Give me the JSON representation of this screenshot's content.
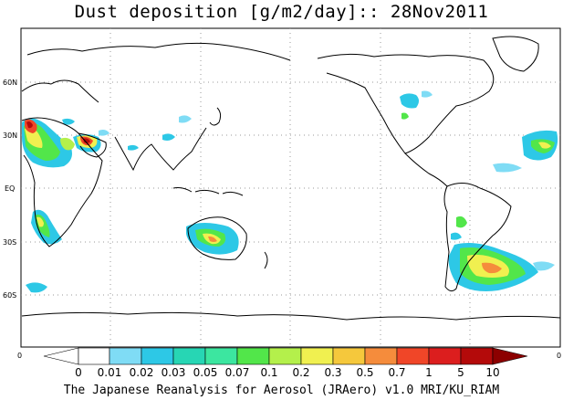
{
  "title": "Dust deposition [g/m2/day]:: 28Nov2011",
  "caption": "The Japanese Reanalysis for Aerosol (JRAero) v1.0 MRI/KU_RIAM",
  "map": {
    "lat_labels": [
      "60N",
      "30N",
      "EQ",
      "30S",
      "60S"
    ],
    "corner_labels": [
      "0",
      "0"
    ],
    "grid": true
  },
  "colorbar": {
    "levels": [
      "0",
      "0.01",
      "0.02",
      "0.03",
      "0.05",
      "0.07",
      "0.1",
      "0.2",
      "0.3",
      "0.5",
      "0.7",
      "1",
      "5",
      "10"
    ],
    "colors": [
      "#ffffff",
      "#ffffff",
      "#7fdcf5",
      "#2dc8e6",
      "#27d6b4",
      "#3ce6a0",
      "#52e64a",
      "#b4f04b",
      "#f0f050",
      "#f5c83c",
      "#f58c3c",
      "#f04628",
      "#dc1e1e",
      "#b40a0a",
      "#8c0000"
    ]
  },
  "colors": {
    "land_outline": "#000000",
    "grid": "#9a9a9a",
    "shade_low": "#2dc8e6",
    "shade_mid": "#52e64a",
    "shade_high": "#f0f050",
    "shade_top": "#dc1e1e"
  }
}
